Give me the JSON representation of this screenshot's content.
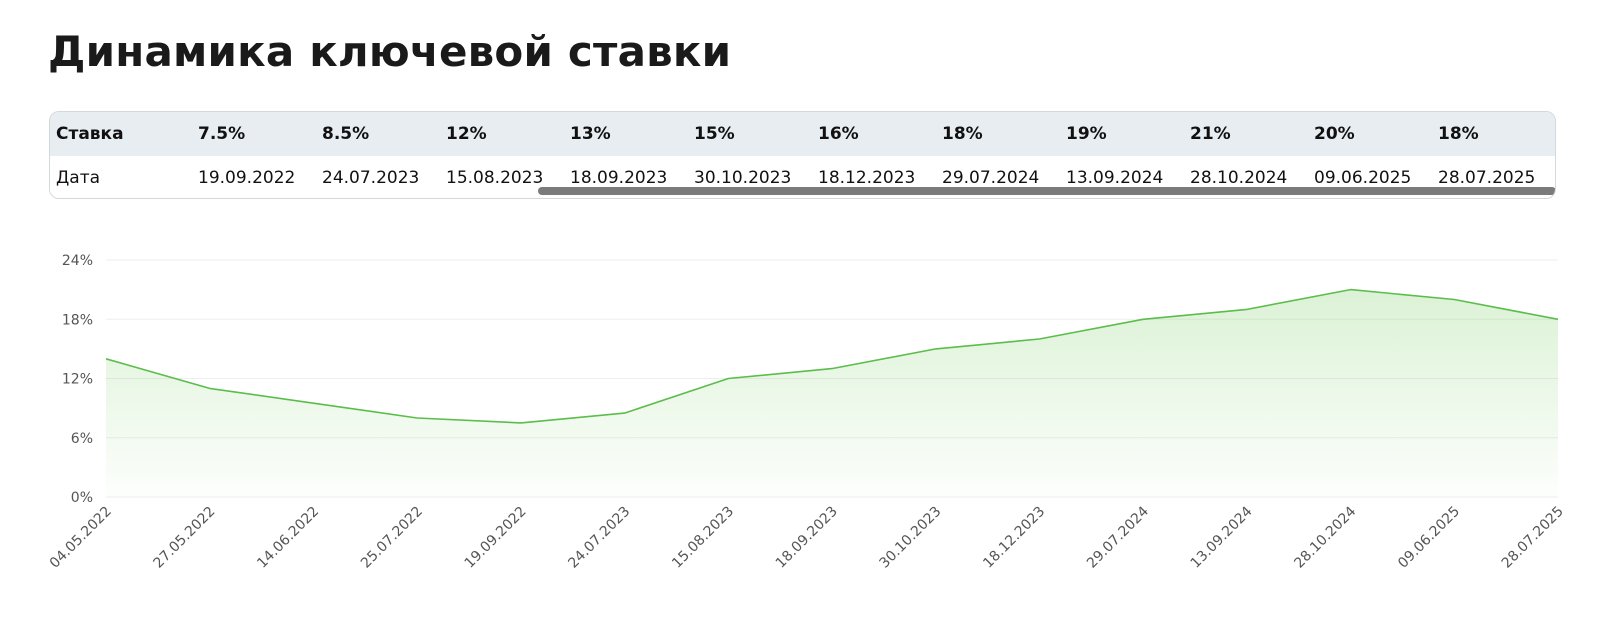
{
  "page": {
    "title": "Динамика ключевой ставки"
  },
  "table": {
    "row_labels": {
      "rate": "Ставка",
      "date": "Дата"
    },
    "columns": [
      {
        "rate": "7.5%",
        "date": "19.09.2022"
      },
      {
        "rate": "8.5%",
        "date": "24.07.2023"
      },
      {
        "rate": "12%",
        "date": "15.08.2023"
      },
      {
        "rate": "13%",
        "date": "18.09.2023"
      },
      {
        "rate": "15%",
        "date": "30.10.2023"
      },
      {
        "rate": "16%",
        "date": "18.12.2023"
      },
      {
        "rate": "18%",
        "date": "29.07.2024"
      },
      {
        "rate": "19%",
        "date": "13.09.2024"
      },
      {
        "rate": "21%",
        "date": "28.10.2024"
      },
      {
        "rate": "20%",
        "date": "09.06.2025"
      },
      {
        "rate": "18%",
        "date": "28.07.2025"
      }
    ]
  },
  "chart_data": {
    "type": "area",
    "title": "",
    "xlabel": "",
    "ylabel": "",
    "categories": [
      "04.05.2022",
      "27.05.2022",
      "14.06.2022",
      "25.07.2022",
      "19.09.2022",
      "24.07.2023",
      "15.08.2023",
      "18.09.2023",
      "30.10.2023",
      "18.12.2023",
      "29.07.2024",
      "13.09.2024",
      "28.10.2024",
      "09.06.2025",
      "28.07.2025"
    ],
    "series": [
      {
        "values": [
          14,
          11,
          9.5,
          8,
          7.5,
          8.5,
          12,
          13,
          15,
          16,
          18,
          19,
          21,
          20,
          18
        ]
      }
    ],
    "ylim": [
      0,
      24
    ],
    "yticks": [
      0,
      6,
      12,
      18,
      24
    ],
    "ytick_labels": [
      "0%",
      "6%",
      "12%",
      "18%",
      "24%"
    ],
    "grid": true,
    "colors": {
      "line": "#5cbd4c",
      "fill": "#7fd06a",
      "grid": "#eeeeee"
    }
  }
}
